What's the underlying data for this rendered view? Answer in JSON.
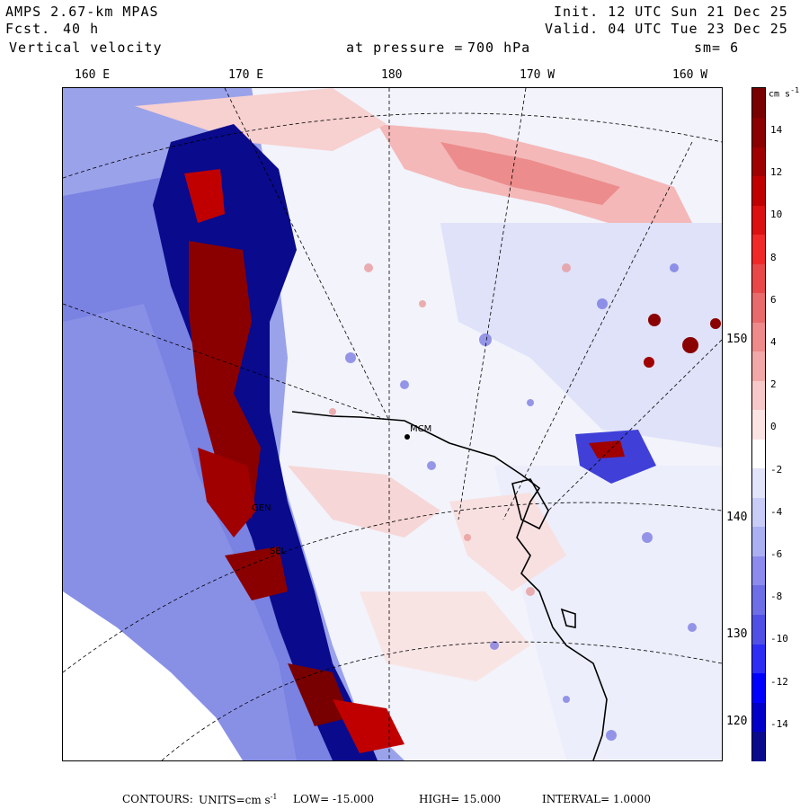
{
  "header": {
    "model": "AMPS 2.67-km MPAS",
    "forecast_label": "Fcst.",
    "forecast_value": "40 h",
    "field": "Vertical velocity",
    "pressure_label": "at pressure =",
    "pressure_value": "700 hPa",
    "init": "Init. 12 UTC Sun 21 Dec 25",
    "valid": "Valid. 04 UTC Tue 23 Dec 25",
    "smooth": "sm= 6"
  },
  "lon_labels": [
    "160 E",
    "170 E",
    "180",
    "170 W",
    "160 W"
  ],
  "lat_labels": [
    "150 W",
    "140 W",
    "130 W",
    "120 W"
  ],
  "colorbar": {
    "units": "cm s",
    "units_exp": "-1",
    "ticks": [
      "14",
      "12",
      "10",
      "8",
      "6",
      "4",
      "2",
      "0",
      "-2",
      "-4",
      "-6",
      "-8",
      "-10",
      "-12",
      "-14"
    ],
    "colors": [
      "#0a0a8c",
      "#0000c8",
      "#0000ff",
      "#2d2df5",
      "#5050e6",
      "#6e6ee6",
      "#8c8cee",
      "#aab0f2",
      "#c8ccf6",
      "#e2e4fa",
      "#ffffff",
      "#fbe3e3",
      "#f7c8c8",
      "#f2a8a8",
      "#ee8a8a",
      "#e86a6a",
      "#e84848",
      "#f02828",
      "#dc1010",
      "#c00000",
      "#a00000",
      "#8a0000",
      "#780000"
    ]
  },
  "stations": [
    "GEN",
    "SEL",
    "MCM"
  ],
  "footer": {
    "contours": "CONTOURS:",
    "units": "UNITS=cm s",
    "units_exp": "-1",
    "low": "LOW= -15.000",
    "high": "HIGH= 15.000",
    "interval": "INTERVAL= 1.0000"
  }
}
